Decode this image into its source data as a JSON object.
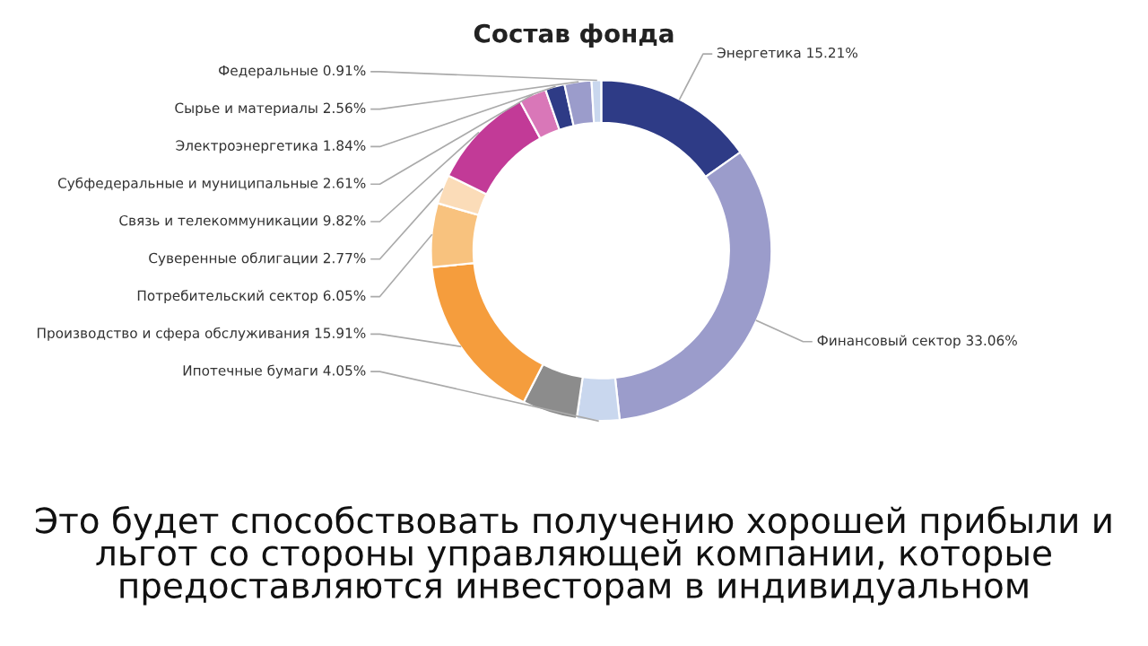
{
  "chart_data": {
    "type": "donut",
    "title": "Состав фонда",
    "categories": [
      "Энергетика",
      "Финансовый сектор",
      "Ипотечные бумаги",
      null,
      "Производство и сфера обслуживания",
      "Потребительский сектор",
      "Суверенные облигации",
      "Связь и телекоммуникации",
      "Субфедеральные и муниципальные",
      "Электроэнергетика",
      "Сырье и материалы",
      "Федеральные"
    ],
    "values": [
      15.21,
      33.06,
      4.05,
      5.21,
      15.91,
      6.05,
      2.77,
      9.82,
      2.61,
      1.84,
      2.56,
      0.91
    ],
    "value_labels": [
      "15.21%",
      "33.06%",
      "4.05%",
      null,
      "15.91%",
      "6.05%",
      "2.77%",
      "9.82%",
      "2.61%",
      "1.84%",
      "2.56%",
      "0.91%"
    ],
    "colors": [
      "#2e3b86",
      "#9b9ccb",
      "#c9d7ee",
      "#8c8c8c",
      "#f59d3d",
      "#f8c27e",
      "#fbdcb8",
      "#c23a97",
      "#d977b8",
      "#2e3b86",
      "#9b9ccb",
      "#c9d7ee"
    ],
    "annotations": [
      "Это будет способствовать получению хорошей прибыли и льгот со стороны управляющей компании, которые предоставляются инвесторам в индивидуальном"
    ]
  }
}
